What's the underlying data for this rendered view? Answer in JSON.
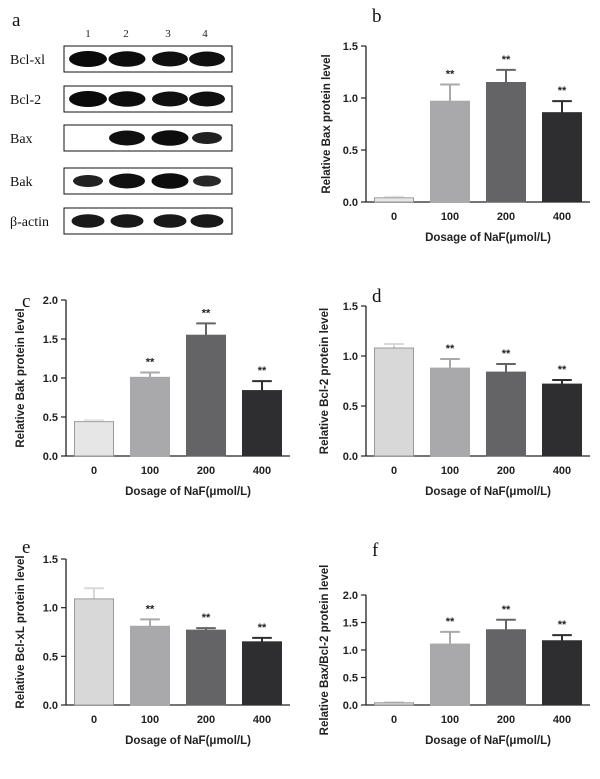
{
  "blot": {
    "panel_label": "a",
    "lanes": [
      "1",
      "2",
      "3",
      "4"
    ],
    "rows": [
      {
        "name": "Bcl-xl",
        "intensity": [
          1,
          0.95,
          0.9,
          0.9
        ]
      },
      {
        "name": "Bcl-2",
        "intensity": [
          1,
          0.95,
          0.9,
          0.9
        ]
      },
      {
        "name": "Bax",
        "intensity": [
          0,
          0.9,
          0.95,
          0.6
        ]
      },
      {
        "name": "Bak",
        "intensity": [
          0.6,
          0.9,
          0.95,
          0.5
        ]
      },
      {
        "name": "β-actin",
        "intensity": [
          0.75,
          0.75,
          0.75,
          0.75
        ]
      }
    ]
  },
  "chart_data": [
    {
      "panel_label": "b",
      "type": "bar",
      "categories": [
        "0",
        "100",
        "200",
        "400"
      ],
      "values": [
        0.04,
        0.97,
        1.15,
        0.86
      ],
      "errors": [
        0.01,
        0.16,
        0.12,
        0.11
      ],
      "significance": [
        "",
        "**",
        "**",
        "**"
      ],
      "ylim": [
        0,
        1.5
      ],
      "yticks": [
        "0.0",
        "0.5",
        "1.0",
        "1.5"
      ],
      "ylabel": "Relative Bax protein level",
      "xlabel": "Dosage of NaF(μmol/L)",
      "colors": [
        "#e6e6e6",
        "#a9a9ab",
        "#646466",
        "#2e2e30"
      ]
    },
    {
      "panel_label": "c",
      "type": "bar",
      "categories": [
        "0",
        "100",
        "200",
        "400"
      ],
      "values": [
        0.44,
        1.01,
        1.55,
        0.84
      ],
      "errors": [
        0.02,
        0.06,
        0.15,
        0.12
      ],
      "significance": [
        "",
        "**",
        "**",
        "**"
      ],
      "ylim": [
        0,
        2.0
      ],
      "yticks": [
        "0.0",
        "0.5",
        "1.0",
        "1.5",
        "2.0"
      ],
      "ylabel": "Relative Bak protein level",
      "xlabel": "Dosage of NaF(μmol/L)",
      "colors": [
        "#e6e6e6",
        "#a9a9ab",
        "#646466",
        "#2e2e30"
      ]
    },
    {
      "panel_label": "d",
      "type": "bar",
      "categories": [
        "0",
        "100",
        "200",
        "400"
      ],
      "values": [
        1.08,
        0.88,
        0.84,
        0.72
      ],
      "errors": [
        0.04,
        0.09,
        0.08,
        0.04
      ],
      "significance": [
        "",
        "**",
        "**",
        "**"
      ],
      "ylim": [
        0,
        1.5
      ],
      "yticks": [
        "0.0",
        "0.5",
        "1.0",
        "1.5"
      ],
      "ylabel": "Relative Bcl-2 protein level",
      "xlabel": "Dosage of NaF(μmol/L)",
      "colors": [
        "#d8d8d8",
        "#a9a9ab",
        "#646466",
        "#2e2e30"
      ]
    },
    {
      "panel_label": "e",
      "type": "bar",
      "categories": [
        "0",
        "100",
        "200",
        "400"
      ],
      "values": [
        1.09,
        0.81,
        0.77,
        0.65
      ],
      "errors": [
        0.11,
        0.07,
        0.02,
        0.04
      ],
      "significance": [
        "",
        "**",
        "**",
        "**"
      ],
      "ylim": [
        0,
        1.5
      ],
      "yticks": [
        "0.0",
        "0.5",
        "1.0",
        "1.5"
      ],
      "ylabel": "Relative Bcl-xL protein level",
      "xlabel": "Dosage of NaF(μmol/L)",
      "colors": [
        "#d8d8d8",
        "#a9a9ab",
        "#646466",
        "#2e2e30"
      ]
    },
    {
      "panel_label": "f",
      "type": "bar",
      "categories": [
        "0",
        "100",
        "200",
        "400"
      ],
      "values": [
        0.04,
        1.11,
        1.37,
        1.17
      ],
      "errors": [
        0.01,
        0.22,
        0.18,
        0.1
      ],
      "significance": [
        "",
        "**",
        "**",
        "**"
      ],
      "ylim": [
        0,
        2.0
      ],
      "yticks": [
        "0.0",
        "0.5",
        "1.0",
        "1.5",
        "2.0"
      ],
      "ylabel": "Relative Bax/Bcl-2 protein level",
      "xlabel": "Dosage of NaF(μmol/L)",
      "colors": [
        "#d8d8d8",
        "#a9a9ab",
        "#646466",
        "#2e2e30"
      ]
    }
  ]
}
